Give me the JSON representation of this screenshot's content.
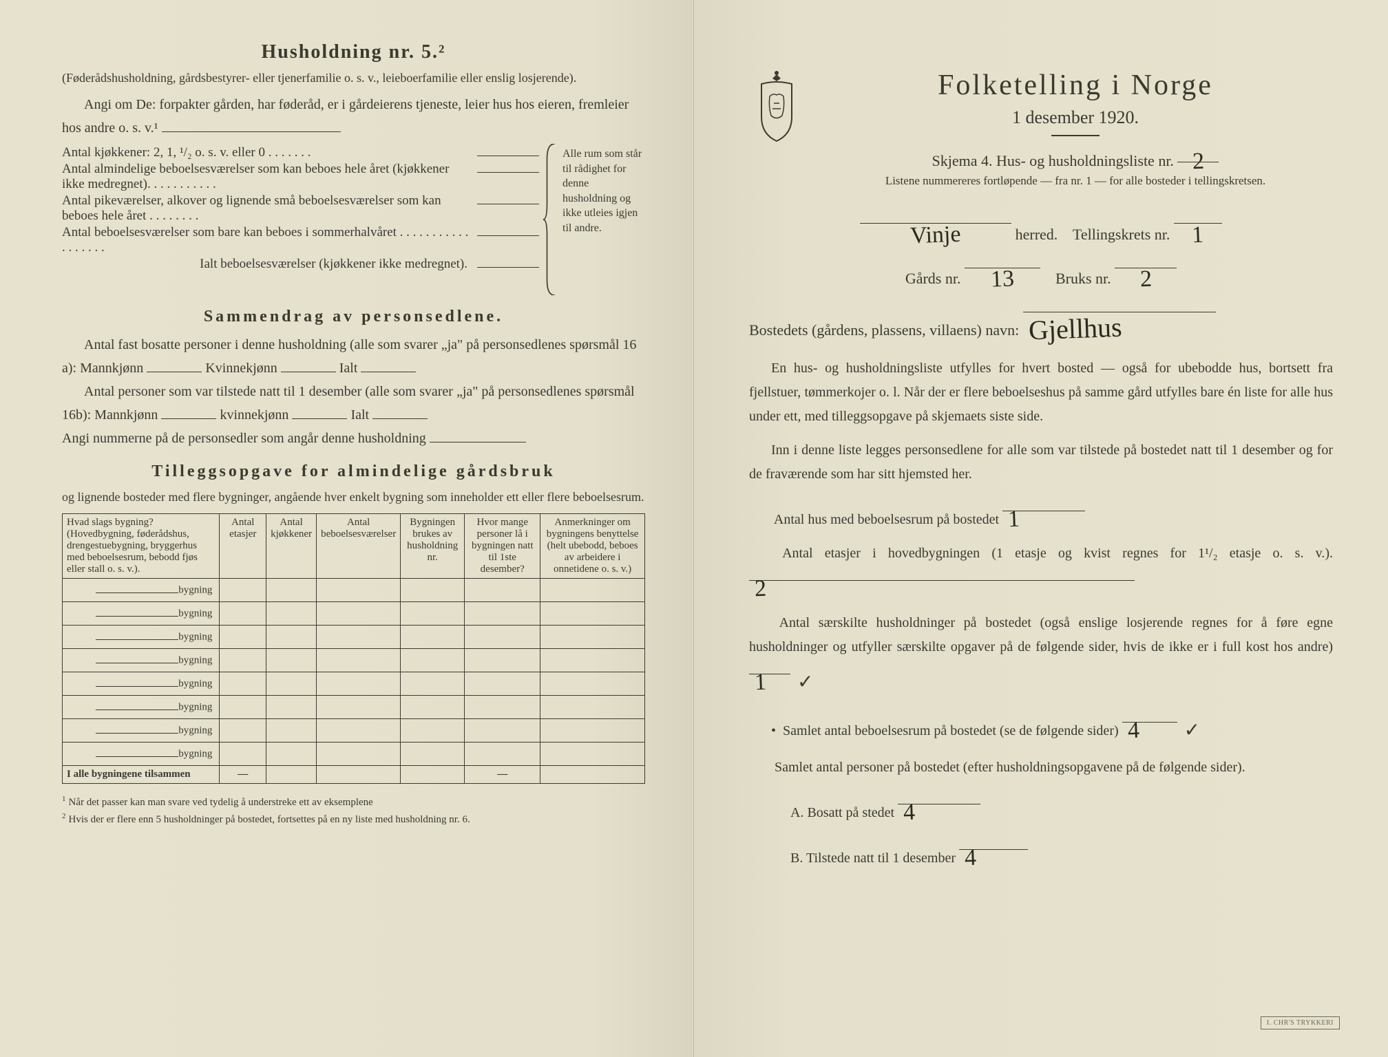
{
  "left": {
    "h5_title": "Husholdning nr. 5.²",
    "h5_sub": "(Føderådshusholdning, gårdsbestyrer- eller tjenerfamilie o. s. v., leieboerfamilie eller enslig losjerende).",
    "angi": "Angi om De:  forpakter gården, har føderåd, er i gårdeierens tjeneste, leier hus hos eieren, fremleier hos andre o. s. v.¹",
    "kitchens": "Antal kjøkkener: 2, 1, ¹/₂ o. s. v. eller 0 . . . . . . .",
    "brace_rows": [
      "Antal almindelige beboelsesværelser som kan beboes hele året (kjøkkener ikke medregnet). . . . . . . . . . .",
      "Antal pikeværelser, alkover og lignende små beboelsesværelser som kan beboes hele året . . . . . . . .",
      "Antal beboelsesværelser som bare kan beboes i sommerhalvåret . . . . . . . . . . . . . . . . . ."
    ],
    "ialt": "Ialt beboelsesværelser (kjøkkener ikke medregnet).",
    "brace_right": "Alle rum som står til rådighet for denne husholdning og ikke utleies igjen til andre.",
    "sammendrag_title": "Sammendrag av personsedlene.",
    "samm_l1a": "Antal fast bosatte personer i denne husholdning (alle som svarer „ja\" på personsedlenes spørsmål 16 a): Mannkjønn",
    "samm_l1b": "Kvinnekjønn",
    "samm_l1c": "Ialt",
    "samm_l2a": "Antal personer som var tilstede natt til 1 desember (alle som svarer „ja\" på personsedlenes spørsmål 16b): Mannkjønn",
    "samm_l2b": "kvinnekjønn",
    "samm_l2c": "Ialt",
    "samm_l3": "Angi nummerne på de personsedler som angår denne husholdning",
    "tillegg_title": "Tilleggsopgave for almindelige gårdsbruk",
    "tillegg_sub": "og lignende bosteder med flere bygninger, angående hver enkelt bygning som inneholder ett eller flere beboelsesrum.",
    "table": {
      "headers": [
        "Hvad slags bygning?\n(Hovedbygning, føderådshus, drengestuebygning, bryggerhus med beboelsesrum, bebodd fjøs eller stall o. s. v.).",
        "Antal etasjer",
        "Antal kjøkkener",
        "Antal beboelsesværelser",
        "Bygningen brukes av husholdning nr.",
        "Hvor mange personer lå i bygningen natt til 1ste desember?",
        "Anmerkninger om bygningens benyttelse (helt ubebodd, beboes av arbeidere i onnetidene o. s. v.)"
      ],
      "row_label": "bygning",
      "row_count": 8,
      "total_label": "I alle bygningene tilsammen"
    },
    "footnote1": "Når det passer kan man svare ved tydelig å understreke ett av eksemplene",
    "footnote2": "Hvis der er flere enn 5 husholdninger på bostedet, fortsettes på en ny liste med husholdning nr. 6."
  },
  "right": {
    "main_title": "Folketelling i Norge",
    "date": "1 desember 1920.",
    "skjema": "Skjema 4.  Hus- og husholdningsliste nr.",
    "skjema_val": "2",
    "listene": "Listene nummereres fortløpende — fra nr. 1 — for alle bosteder i tellingskretsen.",
    "herred_val": "Vinje",
    "herred_lbl": "herred.",
    "krets_lbl": "Tellingskrets nr.",
    "krets_val": "1",
    "gards_lbl": "Gårds nr.",
    "gards_val": "13",
    "bruks_lbl": "Bruks nr.",
    "bruks_val": "2",
    "bosted_lbl": "Bostedets (gårdens, plassens, villaens) navn:",
    "bosted_val": "Gjellhus",
    "para1": "En hus- og husholdningsliste utfylles for hvert bosted — også for ubebodde hus, bortsett fra fjellstuer, tømmerkojer o. l. Når der er flere beboelseshus på samme gård utfylles bare én liste for alle hus under ett, med tilleggsopgave på skjemaets siste side.",
    "para2": "Inn i denne liste legges personsedlene for alle som var tilstede på bostedet natt til 1 desember og for de fraværende som har sitt hjemsted her.",
    "q1_lbl": "Antal hus med beboelsesrum på bostedet",
    "q1_val": "1",
    "q2_lbl_a": "Antal etasjer i hovedbygningen (1 etasje og kvist regnes for 1¹/₂ etasje o. s. v.).",
    "q2_val": "2",
    "q3_lbl": "Antal særskilte husholdninger på bostedet (også enslige losjerende regnes for å føre egne husholdninger og utfyller særskilte opgaver på de følgende sider, hvis de ikke er i full kost hos andre)",
    "q3_val": "1",
    "q3_check": "✓",
    "q4_lbl": "Samlet antal beboelsesrum på bostedet (se de følgende sider)",
    "q4_val": "4",
    "q4_check": "✓",
    "q5_lbl": "Samlet antal personer på bostedet (efter husholdningsopgavene på de følgende sider).",
    "qA_lbl": "A.  Bosatt på stedet",
    "qA_val": "4",
    "qB_lbl": "B.  Tilstede natt til 1 desember",
    "qB_val": "4",
    "stamp": "I. CHR'S TRYKKERI"
  }
}
